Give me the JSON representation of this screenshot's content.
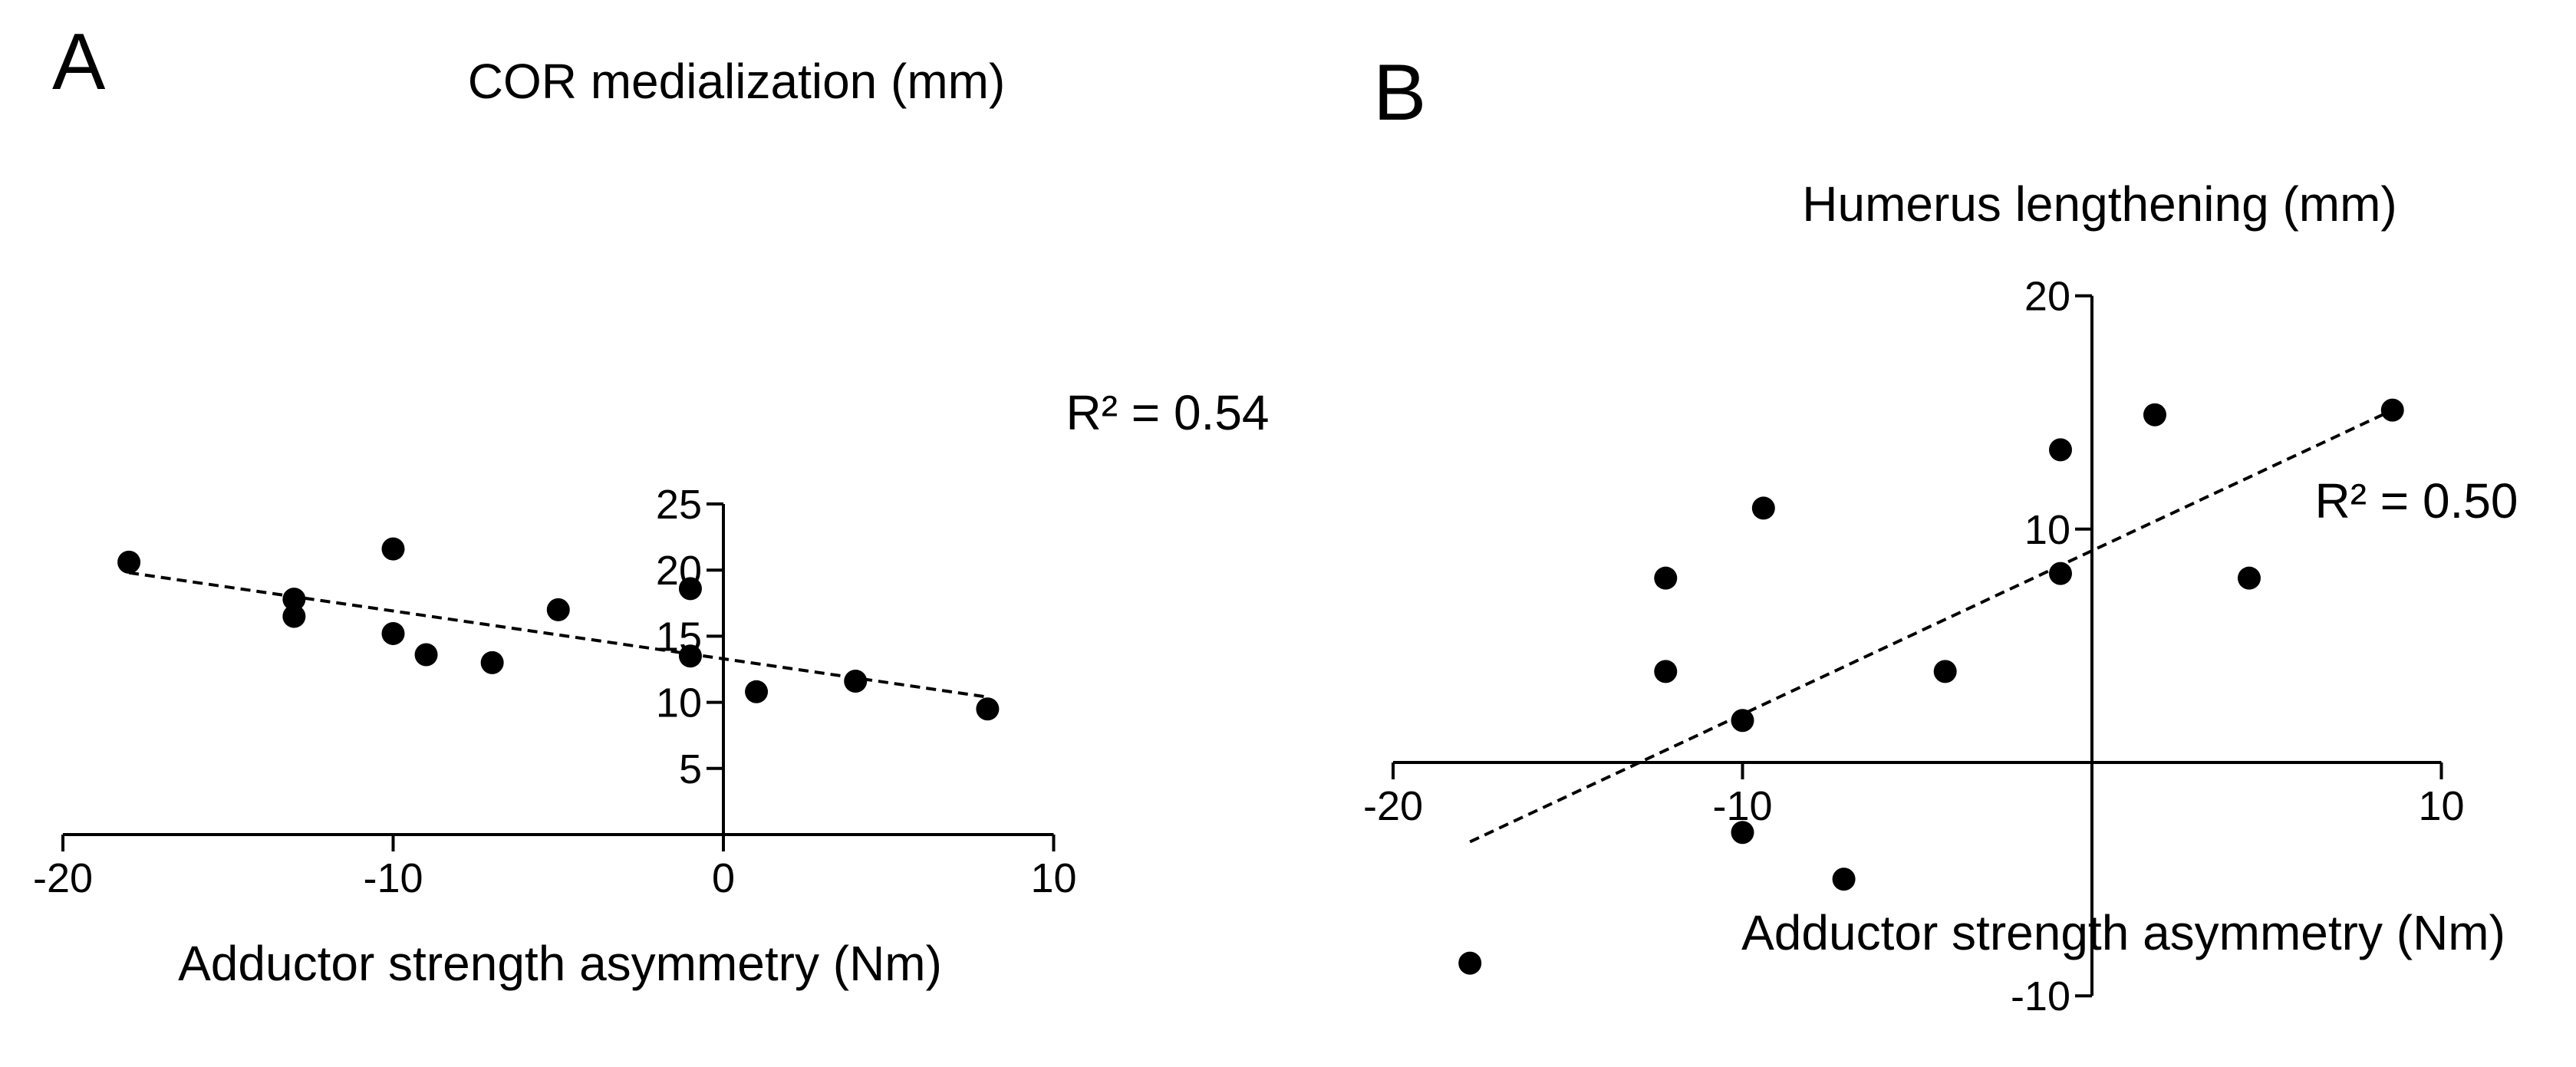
{
  "chart_data": [
    {
      "type": "scatter",
      "panel": "A",
      "title": "",
      "xlabel": "Adductor strength asymmetry (Nm)",
      "ylabel": "COR medialization (mm)",
      "xlim": [
        -20,
        10
      ],
      "ylim": [
        0,
        25
      ],
      "x_ticks": [
        -20,
        -10,
        0,
        10
      ],
      "y_ticks": [
        5,
        10,
        15,
        20,
        25
      ],
      "x_tick_labels": [
        "-20",
        "-10",
        "0",
        "10"
      ],
      "y_tick_labels": [
        "5",
        "10",
        "15",
        "20",
        "25"
      ],
      "points": [
        {
          "x": -18,
          "y": 20.6
        },
        {
          "x": -13,
          "y": 17.8
        },
        {
          "x": -13,
          "y": 16.5
        },
        {
          "x": -10,
          "y": 21.6
        },
        {
          "x": -10,
          "y": 15.2
        },
        {
          "x": -9,
          "y": 13.6
        },
        {
          "x": -7,
          "y": 13.0
        },
        {
          "x": -5,
          "y": 17.0
        },
        {
          "x": -1,
          "y": 18.6
        },
        {
          "x": -1,
          "y": 13.5
        },
        {
          "x": 1,
          "y": 10.8
        },
        {
          "x": 4,
          "y": 11.6
        },
        {
          "x": 8,
          "y": 9.5
        }
      ],
      "fit_line": {
        "x": [
          -18,
          8
        ],
        "y": [
          19.8,
          10.4
        ]
      },
      "annotation": "R² = 0.54"
    },
    {
      "type": "scatter",
      "panel": "B",
      "title": "",
      "xlabel": "Adductor strength asymmetry (Nm)",
      "ylabel": "Humerus lengthening (mm)",
      "xlim": [
        -20,
        10
      ],
      "ylim": [
        -10,
        20
      ],
      "x_ticks": [
        -20,
        -10,
        10
      ],
      "y_ticks": [
        -10,
        10,
        20
      ],
      "x_tick_labels": [
        "-20",
        "-10",
        "10"
      ],
      "y_tick_labels": [
        "-10",
        "10",
        "20"
      ],
      "points": [
        {
          "x": -17.8,
          "y": -8.6
        },
        {
          "x": -12.2,
          "y": 7.9
        },
        {
          "x": -12.2,
          "y": 3.9
        },
        {
          "x": -10,
          "y": 1.8
        },
        {
          "x": -10,
          "y": -3.0
        },
        {
          "x": -9.4,
          "y": 10.9
        },
        {
          "x": -7.1,
          "y": -5.0
        },
        {
          "x": -4.2,
          "y": 3.9
        },
        {
          "x": -0.9,
          "y": 13.4
        },
        {
          "x": -0.9,
          "y": 8.1
        },
        {
          "x": 1.8,
          "y": 14.9
        },
        {
          "x": 4.5,
          "y": 7.9
        },
        {
          "x": 8.6,
          "y": 15.1
        }
      ],
      "fit_line": {
        "x": [
          -17.8,
          8.6
        ],
        "y": [
          -3.4,
          15.1
        ]
      },
      "annotation": "R² = 0.50"
    }
  ]
}
